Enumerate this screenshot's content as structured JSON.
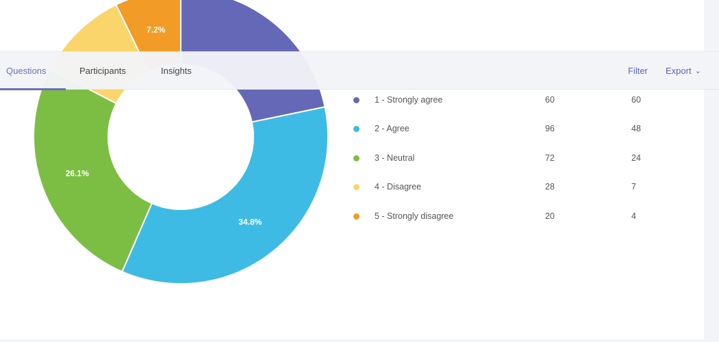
{
  "tabs": [
    {
      "label": "Questions",
      "active": true
    },
    {
      "label": "Participants",
      "active": false
    },
    {
      "label": "Insights",
      "active": false
    }
  ],
  "actions": {
    "filter_label": "Filter",
    "export_label": "Export",
    "export_icon": "chevron-down-icon"
  },
  "colors": {
    "accent": "#6a6fb8",
    "strongly_agree": "#6568b6",
    "agree": "#3dbbe4",
    "neutral": "#7cbe43",
    "disagree": "#fad56b",
    "strongly_disagree": "#f29b26"
  },
  "chart_data": {
    "type": "pie",
    "variant": "donut",
    "categories": [
      "1 - Strongly agree",
      "2 - Agree",
      "3 - Neutral",
      "4 - Disagree",
      "5 - Strongly disagree"
    ],
    "values": [
      60,
      96,
      72,
      28,
      20
    ],
    "secondary_values": [
      60,
      48,
      24,
      7,
      4
    ],
    "percent_labels": [
      "",
      "34.8%",
      "26.1%",
      "",
      "7.2%"
    ],
    "colors": [
      "#6568b6",
      "#3dbbe4",
      "#7cbe43",
      "#fad56b",
      "#f29b26"
    ],
    "legend_position": "right"
  }
}
